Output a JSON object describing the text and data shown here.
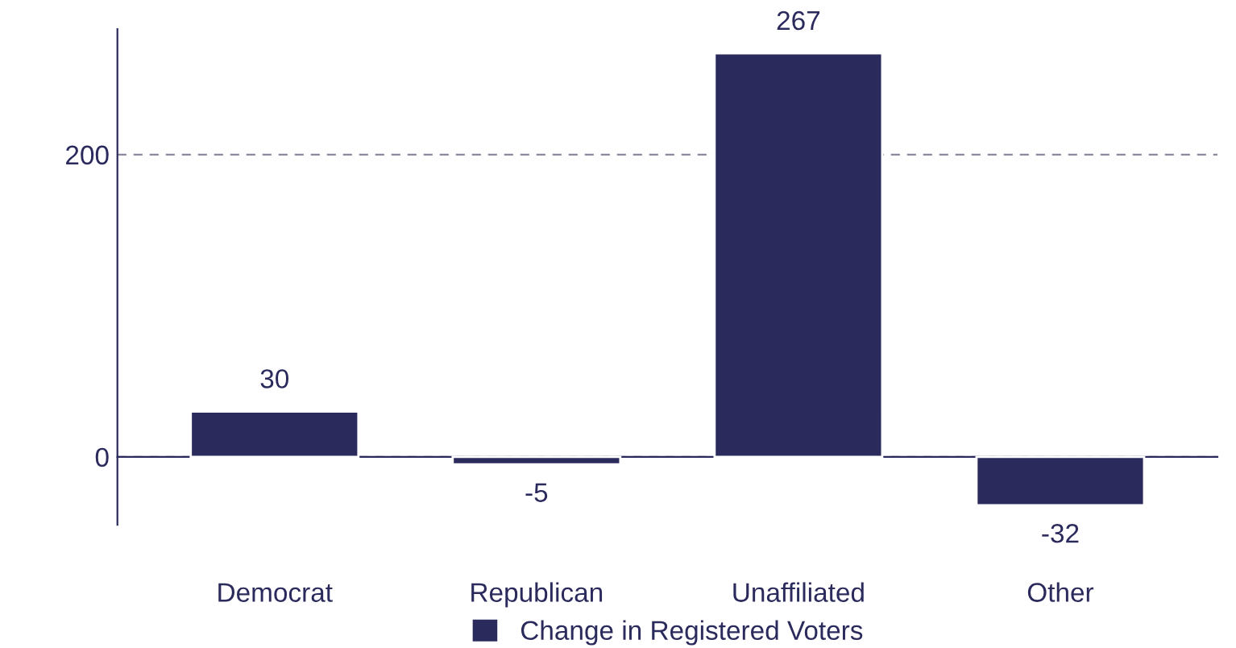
{
  "chart_data": {
    "type": "bar",
    "categories": [
      "Democrat",
      "Republican",
      "Unaffiliated",
      "Other"
    ],
    "series": [
      {
        "name": "Change in Registered Voters",
        "color": "#2b2a5c",
        "values": [
          30,
          -5,
          267,
          -32
        ]
      }
    ],
    "ylim": [
      -45,
      283
    ],
    "yticks": [
      0,
      200
    ],
    "grid": "y",
    "data_labels": true,
    "legend": "bottom"
  }
}
